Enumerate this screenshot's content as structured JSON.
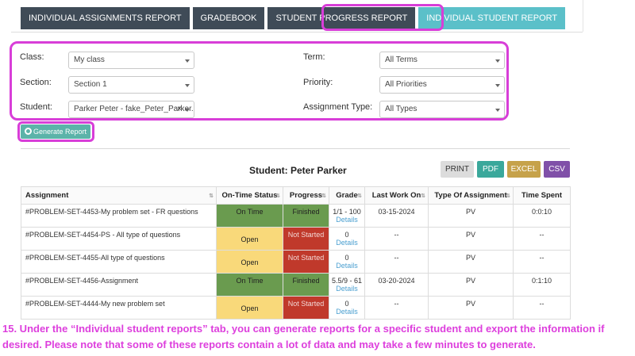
{
  "tabs": [
    {
      "label": "INDIVIDUAL ASSIGNMENTS REPORT"
    },
    {
      "label": "GRADEBOOK"
    },
    {
      "label": "STUDENT PROGRESS REPORT"
    },
    {
      "label": "INDIVIDUAL STUDENT REPORT",
      "active": true
    }
  ],
  "filters": {
    "class": {
      "label": "Class:",
      "value": "My class"
    },
    "section": {
      "label": "Section:",
      "value": "Section 1"
    },
    "student": {
      "label": "Student:",
      "value": "Parker Peter - fake_Peter_Parker..."
    },
    "term": {
      "label": "Term:",
      "value": "All Terms"
    },
    "priority": {
      "label": "Priority:",
      "value": "All Priorities"
    },
    "assignment_type": {
      "label": "Assignment Type:",
      "value": "All Types"
    }
  },
  "generate_button": "Generate Report",
  "student_title": "Student: Peter Parker",
  "export": {
    "print": "PRINT",
    "pdf": "PDF",
    "excel": "EXCEL",
    "csv": "CSV"
  },
  "table": {
    "headers": [
      "Assignment",
      "On-Time Status",
      "Progress",
      "Grade",
      "Last Work On",
      "Type Of Assignment",
      "Time Spent"
    ],
    "details_label": "Details",
    "rows": [
      {
        "assignment": "#PROBLEM-SET-4453-My problem set - FR questions",
        "status": "On Time",
        "progress": "Finished",
        "grade": "1/1 - 100",
        "last_work": "03-15-2024",
        "type": "PV",
        "time": "0:0:10"
      },
      {
        "assignment": "#PROBLEM-SET-4454-PS - All type of questions",
        "status": "Open",
        "progress": "Not Started",
        "grade": "0",
        "last_work": "--",
        "type": "PV",
        "time": "--"
      },
      {
        "assignment": "#PROBLEM-SET-4455-All type of questions",
        "status": "Open",
        "progress": "Not Started",
        "grade": "0",
        "last_work": "--",
        "type": "PV",
        "time": "--"
      },
      {
        "assignment": "#PROBLEM-SET-4456-Assignment",
        "status": "On Time",
        "progress": "Finished",
        "grade": "5.5/9 - 61",
        "last_work": "03-20-2024",
        "type": "PV",
        "time": "0:1:10"
      },
      {
        "assignment": "#PROBLEM-SET-4444-My new problem set",
        "status": "Open",
        "progress": "Not Started",
        "grade": "0",
        "last_work": "--",
        "type": "PV",
        "time": "--"
      }
    ]
  },
  "caption": "15. Under the “Individual student reports” tab, you can generate reports for a specific student and export the information if desired. Please note that some of these reports contain a lot of data and may take a few minutes to generate.",
  "colors": {
    "accent": "#5bc0c9",
    "highlight": "#d83ed8",
    "on_time": "#6a9b4f",
    "open": "#f9d97a",
    "not_started": "#c0392b"
  }
}
